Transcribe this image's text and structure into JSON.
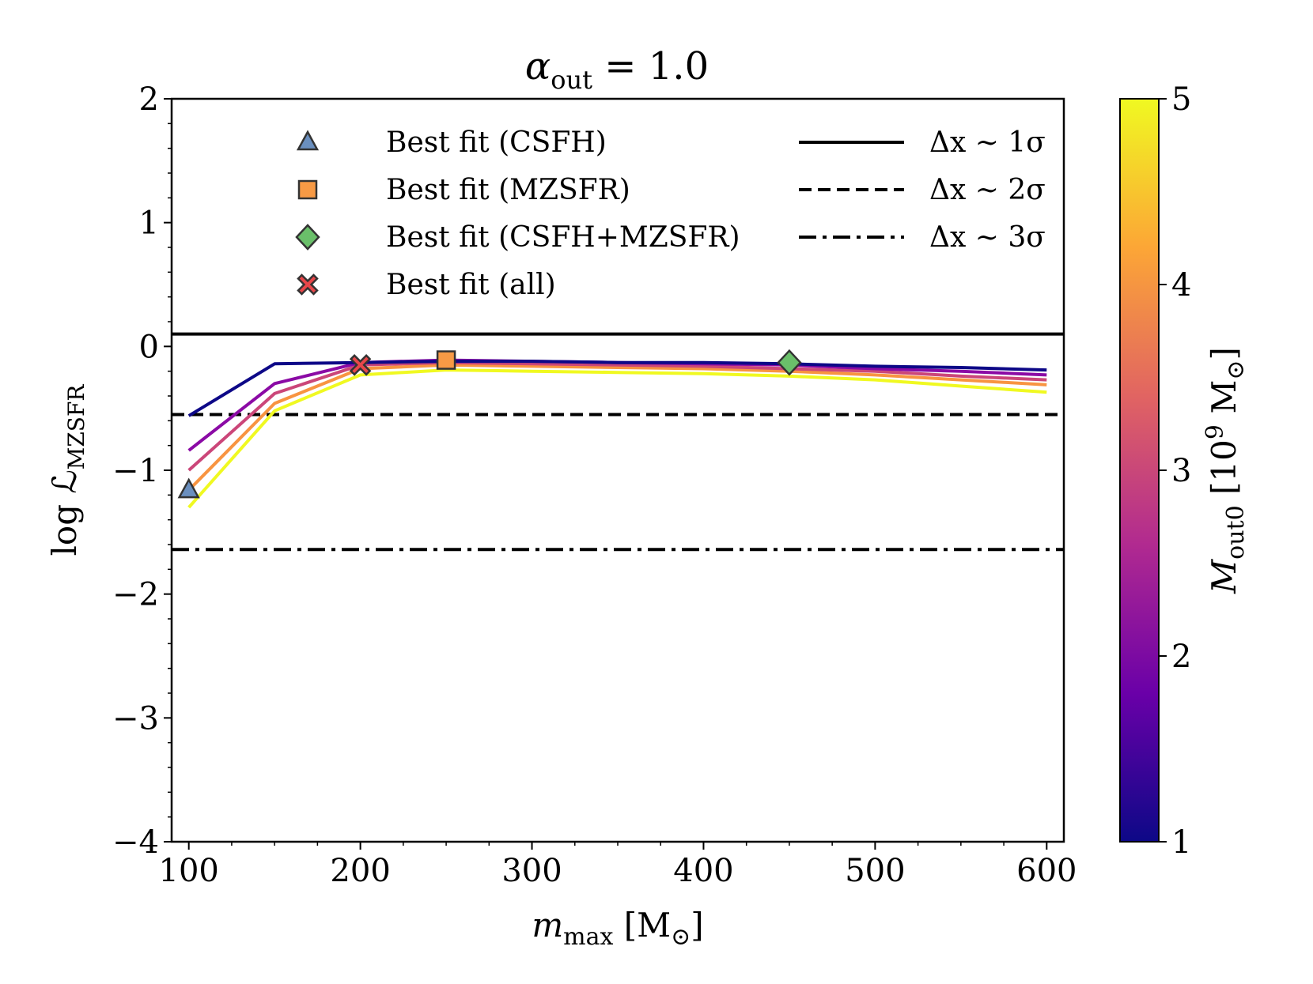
{
  "chart_data": {
    "type": "line",
    "title": {
      "base": "α",
      "sub": "out",
      "rest": " = 1.0"
    },
    "xlabel": {
      "base": "m",
      "sub": "max",
      "rest": " [M",
      "sub2": "⊙",
      "end": "]"
    },
    "ylabel": {
      "base": "log ℒ",
      "sub": "MZSFR"
    },
    "xlim": [
      90,
      610
    ],
    "ylim": [
      -4,
      2
    ],
    "xticks": [
      100,
      200,
      300,
      400,
      500,
      600
    ],
    "xtick_labels": [
      "100",
      "200",
      "300",
      "400",
      "500",
      "600"
    ],
    "yticks": [
      -4,
      -3,
      -2,
      -1,
      0,
      1,
      2
    ],
    "ytick_labels": [
      "−4",
      "−3",
      "−2",
      "−1",
      "0",
      "1",
      "2"
    ],
    "x": [
      100,
      150,
      200,
      250,
      300,
      350,
      400,
      450,
      500,
      550,
      600
    ],
    "series": [
      {
        "name": "M_out0 = 1",
        "mout0": 1,
        "color": "#0d0887",
        "values": [
          -0.56,
          -0.14,
          -0.13,
          -0.12,
          -0.12,
          -0.13,
          -0.13,
          -0.14,
          -0.16,
          -0.17,
          -0.19
        ]
      },
      {
        "name": "M_out0 = 2",
        "mout0": 2,
        "color": "#8b0aa5",
        "values": [
          -0.84,
          -0.3,
          -0.13,
          -0.11,
          -0.12,
          -0.13,
          -0.14,
          -0.15,
          -0.18,
          -0.2,
          -0.23
        ]
      },
      {
        "name": "M_out0 = 3",
        "mout0": 3,
        "color": "#cb4679",
        "values": [
          -1.0,
          -0.38,
          -0.15,
          -0.13,
          -0.14,
          -0.15,
          -0.16,
          -0.18,
          -0.2,
          -0.24,
          -0.27
        ]
      },
      {
        "name": "M_out0 = 4",
        "mout0": 4,
        "color": "#f89441",
        "values": [
          -1.16,
          -0.46,
          -0.18,
          -0.15,
          -0.16,
          -0.17,
          -0.18,
          -0.2,
          -0.23,
          -0.27,
          -0.31
        ]
      },
      {
        "name": "M_out0 = 5",
        "mout0": 5,
        "color": "#f0f921",
        "values": [
          -1.3,
          -0.52,
          -0.23,
          -0.19,
          -0.2,
          -0.21,
          -0.22,
          -0.24,
          -0.27,
          -0.32,
          -0.37
        ]
      }
    ],
    "reference_lines": [
      {
        "y": 0.1,
        "style": "solid",
        "label": "Δx ∼ 1σ"
      },
      {
        "y": -0.55,
        "style": "dashed",
        "label": "Δx ∼ 2σ"
      },
      {
        "y": -1.64,
        "style": "dashdot",
        "label": "Δx ∼ 3σ"
      }
    ],
    "best_fit_markers": [
      {
        "label": "Best fit (CSFH)",
        "x": 100,
        "y": -1.16,
        "marker": "triangle",
        "color": "#6a8fbf"
      },
      {
        "label": "Best fit (MZSFR)",
        "x": 250,
        "y": -0.11,
        "marker": "square",
        "color": "#f79a45"
      },
      {
        "label": "Best fit (CSFH+MZSFR)",
        "x": 450,
        "y": -0.13,
        "marker": "diamond",
        "color": "#6abf6a"
      },
      {
        "label": "Best fit (all)",
        "x": 200,
        "y": -0.15,
        "marker": "x",
        "color": "#e8474a"
      }
    ],
    "colorbar": {
      "label": {
        "base": "M",
        "sub": "out0",
        "rest": " [10",
        "sup": "9",
        "end": " M",
        "sub2": "⊙",
        "end2": "]"
      },
      "range": [
        1,
        5
      ],
      "ticks": [
        1,
        2,
        3,
        4,
        5
      ],
      "tick_labels": [
        "1",
        "2",
        "3",
        "4",
        "5"
      ],
      "colormap": "plasma",
      "stops": [
        "#0d0887",
        "#6a00a8",
        "#b12a90",
        "#e16462",
        "#fca636",
        "#f0f921"
      ]
    },
    "legend_location": "top",
    "grid": false
  }
}
